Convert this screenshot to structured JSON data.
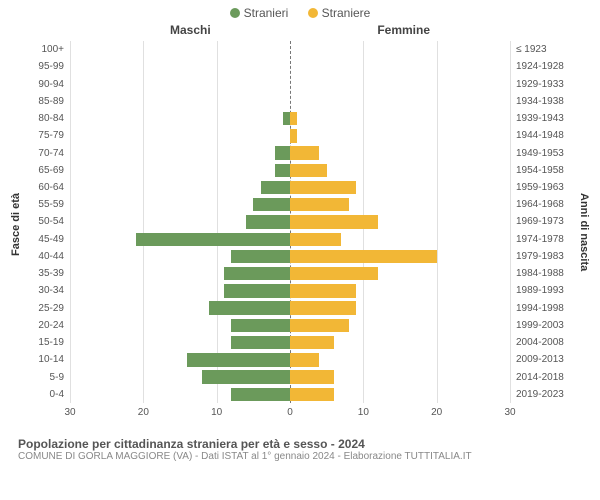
{
  "legend": {
    "male": {
      "label": "Stranieri",
      "color": "#6b9a5b"
    },
    "female": {
      "label": "Straniere",
      "color": "#f2b736"
    }
  },
  "side_titles": {
    "left": "Maschi",
    "right": "Femmine"
  },
  "axis_labels": {
    "left": "Fasce di età",
    "right": "Anni di nascita"
  },
  "chart": {
    "type": "population-pyramid",
    "x_max": 30,
    "x_ticks_left": [
      30,
      20,
      10,
      0
    ],
    "x_ticks_right": [
      0,
      10,
      20,
      30
    ],
    "grid_positions": [
      -30,
      -20,
      -10,
      0,
      10,
      20,
      30
    ],
    "background_color": "#ffffff",
    "grid_color": "#e0e0e0",
    "bar_gap_ratio": 0.22,
    "rows": [
      {
        "age": "100+",
        "year": "≤ 1923",
        "m": 0,
        "f": 0
      },
      {
        "age": "95-99",
        "year": "1924-1928",
        "m": 0,
        "f": 0
      },
      {
        "age": "90-94",
        "year": "1929-1933",
        "m": 0,
        "f": 0
      },
      {
        "age": "85-89",
        "year": "1934-1938",
        "m": 0,
        "f": 0
      },
      {
        "age": "80-84",
        "year": "1939-1943",
        "m": 1,
        "f": 1
      },
      {
        "age": "75-79",
        "year": "1944-1948",
        "m": 0,
        "f": 1
      },
      {
        "age": "70-74",
        "year": "1949-1953",
        "m": 2,
        "f": 4
      },
      {
        "age": "65-69",
        "year": "1954-1958",
        "m": 2,
        "f": 5
      },
      {
        "age": "60-64",
        "year": "1959-1963",
        "m": 4,
        "f": 9
      },
      {
        "age": "55-59",
        "year": "1964-1968",
        "m": 5,
        "f": 8
      },
      {
        "age": "50-54",
        "year": "1969-1973",
        "m": 6,
        "f": 12
      },
      {
        "age": "45-49",
        "year": "1974-1978",
        "m": 21,
        "f": 7
      },
      {
        "age": "40-44",
        "year": "1979-1983",
        "m": 8,
        "f": 20
      },
      {
        "age": "35-39",
        "year": "1984-1988",
        "m": 9,
        "f": 12
      },
      {
        "age": "30-34",
        "year": "1989-1993",
        "m": 9,
        "f": 9
      },
      {
        "age": "25-29",
        "year": "1994-1998",
        "m": 11,
        "f": 9
      },
      {
        "age": "20-24",
        "year": "1999-2003",
        "m": 8,
        "f": 8
      },
      {
        "age": "15-19",
        "year": "2004-2008",
        "m": 8,
        "f": 6
      },
      {
        "age": "10-14",
        "year": "2009-2013",
        "m": 14,
        "f": 4
      },
      {
        "age": "5-9",
        "year": "2014-2018",
        "m": 12,
        "f": 6
      },
      {
        "age": "0-4",
        "year": "2019-2023",
        "m": 8,
        "f": 6
      }
    ]
  },
  "caption": {
    "title": "Popolazione per cittadinanza straniera per età e sesso - 2024",
    "sub": "COMUNE DI GORLA MAGGIORE (VA) - Dati ISTAT al 1° gennaio 2024 - Elaborazione TUTTITALIA.IT"
  }
}
